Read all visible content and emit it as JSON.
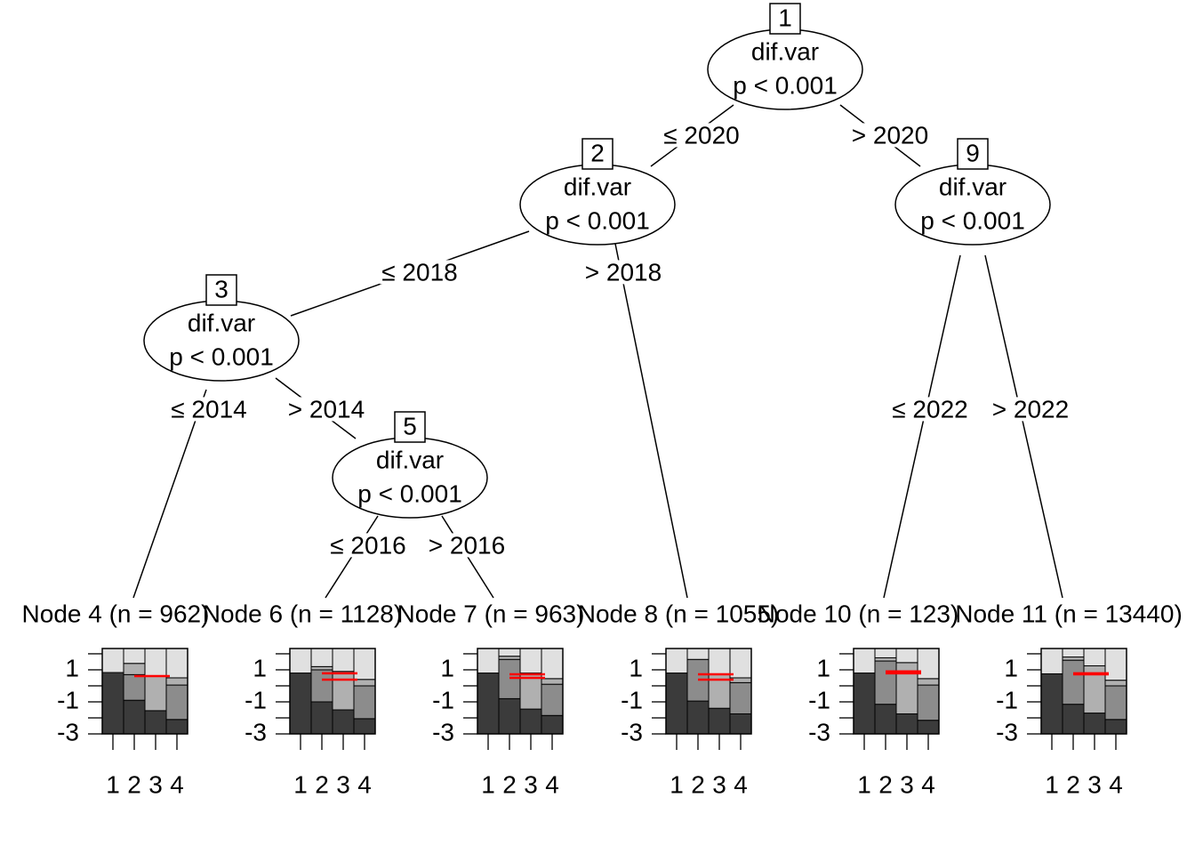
{
  "nodes": [
    {
      "id": "1",
      "var": "dif.var",
      "p": "p < 0.001"
    },
    {
      "id": "2",
      "var": "dif.var",
      "p": "p < 0.001"
    },
    {
      "id": "9",
      "var": "dif.var",
      "p": "p < 0.001"
    },
    {
      "id": "3",
      "var": "dif.var",
      "p": "p < 0.001"
    },
    {
      "id": "5",
      "var": "dif.var",
      "p": "p < 0.001"
    }
  ],
  "edges": [
    {
      "label": "≤ 2020"
    },
    {
      "label": "> 2020"
    },
    {
      "label": "≤ 2018"
    },
    {
      "label": "> 2018"
    },
    {
      "label": "≤ 2014"
    },
    {
      "label": "> 2014"
    },
    {
      "label": "≤ 2016"
    },
    {
      "label": "> 2016"
    },
    {
      "label": "≤ 2022"
    },
    {
      "label": "> 2022"
    }
  ],
  "leaf_panel": {
    "ylim": [
      -3,
      2.33
    ],
    "yticks": [
      1,
      -1,
      -3
    ],
    "minor_yticks": [
      2,
      0,
      -2
    ],
    "categories": [
      "1",
      "2",
      "3",
      "4"
    ],
    "colors": [
      "#3b3b3b",
      "#8c8c8c",
      "#b0b0b0",
      "#e0e0e0"
    ],
    "estimate_color": "#ff0000"
  },
  "leaves": [
    {
      "label": "Node 4 (n = 962)",
      "columns": [
        [
          3.83,
          0,
          0,
          1.5
        ],
        [
          2.1,
          1.6,
          0.7,
          0.93
        ],
        [
          1.45,
          0,
          2.15,
          1.73
        ],
        [
          0.9,
          2.15,
          0.45,
          1.83
        ]
      ],
      "estimates": [
        0.61
      ]
    },
    {
      "label": "Node 6 (n = 1128)",
      "columns": [
        [
          3.8,
          0,
          0,
          1.53
        ],
        [
          2.0,
          2.0,
          0.2,
          1.13
        ],
        [
          1.5,
          0,
          2.4,
          1.43
        ],
        [
          0.95,
          2.05,
          0.4,
          1.93
        ]
      ],
      "estimates": [
        0.78,
        0.39
      ]
    },
    {
      "label": "Node 7 (n = 963)",
      "columns": [
        [
          3.8,
          0,
          0,
          1.53
        ],
        [
          2.2,
          2.45,
          0.2,
          0.48
        ],
        [
          1.55,
          0,
          2.25,
          1.53
        ],
        [
          1.15,
          1.95,
          0.35,
          1.88
        ]
      ],
      "estimates": [
        0.72,
        0.5
      ]
    },
    {
      "label": "Node 8 (n = 1055)",
      "columns": [
        [
          3.8,
          0,
          0,
          1.53
        ],
        [
          2.05,
          2.6,
          0,
          0.68
        ],
        [
          1.6,
          0,
          2.15,
          1.58
        ],
        [
          1.25,
          1.95,
          0.3,
          1.83
        ]
      ],
      "estimates": [
        0.72,
        0.39
      ]
    },
    {
      "label": "Node 10 (n = 123)",
      "columns": [
        [
          3.8,
          0,
          0,
          1.53
        ],
        [
          1.85,
          2.7,
          0.2,
          0.58
        ],
        [
          1.25,
          0,
          3.2,
          0.88
        ],
        [
          0.85,
          2.2,
          0.4,
          1.88
        ]
      ],
      "estimates": [
        0.9,
        0.78
      ]
    },
    {
      "label": "Node 11 (n = 13440)",
      "columns": [
        [
          3.75,
          0,
          0,
          1.58
        ],
        [
          1.85,
          2.75,
          0.2,
          0.53
        ],
        [
          1.3,
          0,
          2.95,
          1.08
        ],
        [
          0.9,
          2.1,
          0.35,
          1.98
        ]
      ],
      "estimates": [
        0.78,
        0.72
      ]
    }
  ]
}
